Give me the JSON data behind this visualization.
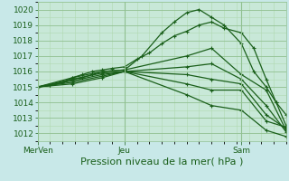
{
  "xlabel": "Pression niveau de la mer( hPa )",
  "bg_color": "#c8e8e8",
  "plot_bg_color": "#c8e8d8",
  "line_color": "#1a5f1a",
  "ylim": [
    1011.5,
    1020.5
  ],
  "xlim": [
    0,
    100
  ],
  "ytick_vals": [
    1012,
    1013,
    1014,
    1015,
    1016,
    1017,
    1018,
    1019,
    1020
  ],
  "xtick_positions": [
    0,
    35,
    82
  ],
  "xtick_labels": [
    "MerVen",
    "Jeu",
    "Sam"
  ],
  "lines": [
    {
      "x": [
        0,
        5,
        10,
        14,
        18,
        22,
        26,
        35,
        42,
        50,
        55,
        60,
        65,
        70,
        75,
        82,
        87,
        92,
        96,
        100
      ],
      "y": [
        1015.0,
        1015.1,
        1015.3,
        1015.5,
        1015.6,
        1015.8,
        1016.0,
        1016.1,
        1017.0,
        1018.5,
        1019.2,
        1019.8,
        1020.0,
        1019.5,
        1019.0,
        1017.8,
        1016.0,
        1015.0,
        1014.0,
        1013.2
      ]
    },
    {
      "x": [
        0,
        5,
        10,
        14,
        18,
        22,
        26,
        30,
        35,
        40,
        45,
        50,
        55,
        60,
        65,
        70,
        75,
        82,
        87,
        92,
        96,
        100
      ],
      "y": [
        1015.0,
        1015.1,
        1015.3,
        1015.6,
        1015.8,
        1016.0,
        1016.1,
        1016.2,
        1016.3,
        1016.8,
        1017.2,
        1017.8,
        1018.3,
        1018.6,
        1019.0,
        1019.2,
        1018.8,
        1018.5,
        1017.5,
        1015.5,
        1014.0,
        1012.5
      ]
    },
    {
      "x": [
        0,
        14,
        26,
        35,
        60,
        70,
        82,
        92,
        100
      ],
      "y": [
        1015.0,
        1015.6,
        1016.0,
        1016.1,
        1017.0,
        1017.5,
        1015.8,
        1014.8,
        1012.2
      ]
    },
    {
      "x": [
        0,
        14,
        26,
        35,
        60,
        70,
        82,
        92,
        100
      ],
      "y": [
        1015.0,
        1015.5,
        1015.9,
        1016.0,
        1016.3,
        1016.5,
        1015.5,
        1013.8,
        1012.1
      ]
    },
    {
      "x": [
        0,
        14,
        26,
        35,
        60,
        70,
        82,
        92,
        100
      ],
      "y": [
        1015.0,
        1015.4,
        1015.8,
        1016.0,
        1015.8,
        1015.5,
        1015.2,
        1013.2,
        1012.3
      ]
    },
    {
      "x": [
        0,
        14,
        26,
        35,
        60,
        70,
        82,
        92,
        100
      ],
      "y": [
        1015.0,
        1015.3,
        1015.7,
        1016.0,
        1015.2,
        1014.8,
        1014.8,
        1012.8,
        1012.4
      ]
    },
    {
      "x": [
        0,
        14,
        26,
        35,
        60,
        70,
        82,
        92,
        100
      ],
      "y": [
        1015.0,
        1015.2,
        1015.6,
        1016.0,
        1014.5,
        1013.8,
        1013.5,
        1012.2,
        1011.8
      ]
    }
  ],
  "grid_major_color": "#90c090",
  "grid_minor_color": "#b0d8b0",
  "tick_fontsize": 6.5,
  "label_fontsize": 8,
  "linewidth": 0.9,
  "marker_size": 2.5
}
